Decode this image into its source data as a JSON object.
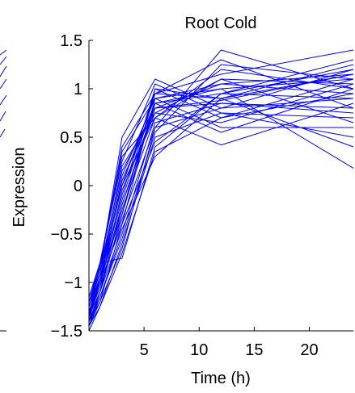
{
  "chart_data": {
    "type": "line",
    "title": "Root Cold",
    "xlabel": "Time (h)",
    "ylabel": "Expression",
    "xlim": [
      0,
      24
    ],
    "ylim": [
      -1.5,
      1.5
    ],
    "xticks": [
      5,
      10,
      15,
      20
    ],
    "xtick_labels": [
      "5",
      "10",
      "15",
      "20"
    ],
    "yticks": [
      -1.5,
      -1,
      -0.5,
      0,
      0.5,
      1,
      1.5
    ],
    "ytick_labels": [
      "−1.5",
      "−1",
      "−0.5",
      "0",
      "0.5",
      "1",
      "1.5"
    ],
    "line_color": "#0000ff",
    "grid": false,
    "x": [
      0,
      1,
      3,
      6,
      12,
      24
    ],
    "series": [
      {
        "values": [
          -1.45,
          -1.2,
          -0.4,
          0.9,
          1.0,
          1.1
        ]
      },
      {
        "values": [
          -1.4,
          -1.1,
          -0.3,
          0.85,
          0.95,
          1.2
        ]
      },
      {
        "values": [
          -1.35,
          -1.0,
          -0.2,
          0.8,
          1.05,
          1.15
        ]
      },
      {
        "values": [
          -1.3,
          -0.95,
          0.0,
          0.95,
          0.9,
          1.25
        ]
      },
      {
        "values": [
          -1.25,
          -0.9,
          0.2,
          0.75,
          1.1,
          1.05
        ]
      },
      {
        "values": [
          -1.2,
          -0.85,
          0.5,
          1.1,
          0.8,
          0.9
        ]
      },
      {
        "values": [
          -1.15,
          -0.8,
          0.3,
          0.7,
          1.2,
          1.0
        ]
      },
      {
        "values": [
          -1.5,
          -1.25,
          -0.6,
          0.5,
          0.75,
          0.7
        ]
      },
      {
        "values": [
          -1.4,
          -1.15,
          -0.5,
          0.65,
          0.85,
          0.8
        ]
      },
      {
        "values": [
          -1.35,
          -0.8,
          -0.75,
          0.4,
          0.95,
          1.3
        ]
      },
      {
        "values": [
          -1.3,
          -1.05,
          -0.35,
          0.6,
          1.4,
          1.0
        ]
      },
      {
        "values": [
          -1.25,
          -0.95,
          -0.1,
          1.0,
          0.7,
          0.95
        ]
      },
      {
        "values": [
          -1.2,
          -0.9,
          0.1,
          0.9,
          0.6,
          0.6
        ]
      },
      {
        "values": [
          -1.45,
          -1.1,
          -0.45,
          0.3,
          0.9,
          1.15
        ]
      },
      {
        "values": [
          -1.35,
          -1.0,
          -0.25,
          0.7,
          0.42,
          0.85
        ]
      },
      {
        "values": [
          -1.3,
          -1.0,
          0.05,
          0.85,
          1.0,
          0.18
        ]
      },
      {
        "values": [
          -1.4,
          -0.95,
          -0.15,
          0.95,
          1.15,
          1.4
        ]
      },
      {
        "values": [
          -1.25,
          -0.85,
          0.15,
          0.8,
          0.85,
          0.75
        ]
      },
      {
        "values": [
          -1.2,
          -0.8,
          0.25,
          1.05,
          0.75,
          0.5
        ]
      },
      {
        "values": [
          -1.45,
          -1.15,
          -0.55,
          0.55,
          1.25,
          1.1
        ]
      },
      {
        "values": [
          -1.35,
          -1.05,
          -0.05,
          0.75,
          0.65,
          1.05
        ]
      },
      {
        "values": [
          -1.3,
          -0.95,
          -0.3,
          1.0,
          0.9,
          0.4
        ]
      },
      {
        "values": [
          -1.15,
          -0.8,
          0.35,
          0.9,
          1.05,
          0.95
        ]
      },
      {
        "values": [
          -1.4,
          -1.2,
          -0.65,
          0.6,
          0.8,
          1.2
        ]
      },
      {
        "values": [
          -1.25,
          -0.9,
          0.0,
          0.7,
          1.1,
          0.65
        ]
      },
      {
        "values": [
          -1.35,
          -1.1,
          -0.2,
          0.85,
          0.55,
          1.0
        ]
      },
      {
        "values": [
          -1.2,
          -0.85,
          0.4,
          0.95,
          1.3,
          0.8
        ]
      },
      {
        "values": [
          -1.3,
          -1.0,
          -0.4,
          0.45,
          0.95,
          0.9
        ]
      },
      {
        "values": [
          -1.45,
          -1.25,
          -0.7,
          0.35,
          0.7,
          1.1
        ]
      },
      {
        "values": [
          -1.25,
          -0.95,
          0.05,
          0.8,
          0.88,
          1.15
        ]
      }
    ]
  }
}
